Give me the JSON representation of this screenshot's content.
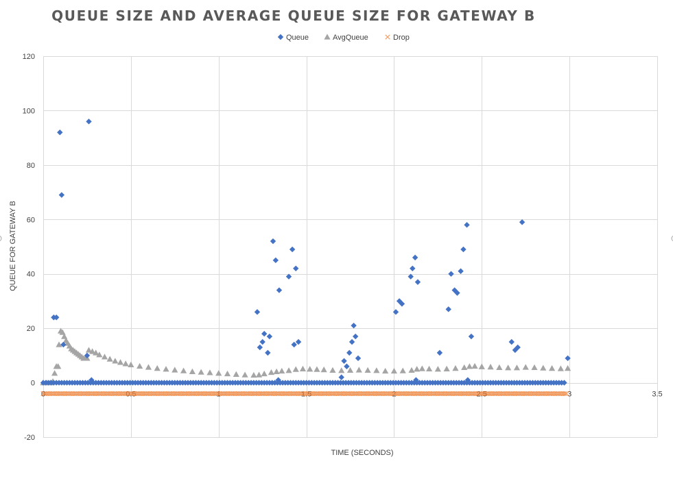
{
  "chart_data": {
    "type": "scatter",
    "title": "QUEUE SIZE AND AVERAGE QUEUE SIZE FOR GATEWAY B",
    "xlabel": "TIME (SECONDS)",
    "ylabel": "QUEUE FOR GATEWAY B",
    "xlim": [
      0,
      3.5
    ],
    "ylim": [
      -20,
      120
    ],
    "x_ticks": [
      0,
      0.5,
      1,
      1.5,
      2,
      2.5,
      3,
      3.5
    ],
    "x_tick_labels": [
      "0",
      "0.5",
      "1",
      "1.5",
      "2",
      "2.5",
      "3",
      "3.5"
    ],
    "y_ticks": [
      -20,
      0,
      20,
      40,
      60,
      80,
      100,
      120
    ],
    "y_tick_labels": [
      "-20",
      "0",
      "20",
      "40",
      "60",
      "80",
      "100",
      "120"
    ],
    "grid": true,
    "legend_position": "top",
    "series": [
      {
        "name": "Queue",
        "marker": "diamond",
        "color": "#4472c4",
        "baseline": {
          "x_start": 0.0,
          "x_end": 2.98,
          "step": 0.015,
          "y": 0
        },
        "points": [
          [
            0.06,
            24
          ],
          [
            0.075,
            24
          ],
          [
            0.095,
            92
          ],
          [
            0.105,
            69
          ],
          [
            0.115,
            14
          ],
          [
            0.25,
            10
          ],
          [
            0.26,
            96
          ],
          [
            0.275,
            1
          ],
          [
            1.22,
            26
          ],
          [
            1.235,
            13
          ],
          [
            1.25,
            15
          ],
          [
            1.26,
            18
          ],
          [
            1.28,
            11
          ],
          [
            1.29,
            17
          ],
          [
            1.31,
            52
          ],
          [
            1.325,
            45
          ],
          [
            1.345,
            34
          ],
          [
            1.34,
            1
          ],
          [
            1.4,
            39
          ],
          [
            1.42,
            49
          ],
          [
            1.43,
            14
          ],
          [
            1.44,
            42
          ],
          [
            1.455,
            15
          ],
          [
            1.7,
            2
          ],
          [
            1.715,
            8
          ],
          [
            1.73,
            6
          ],
          [
            1.745,
            11
          ],
          [
            1.76,
            15
          ],
          [
            1.77,
            21
          ],
          [
            1.78,
            17
          ],
          [
            1.795,
            9
          ],
          [
            2.01,
            26
          ],
          [
            2.03,
            30
          ],
          [
            2.045,
            29
          ],
          [
            2.095,
            39
          ],
          [
            2.105,
            42
          ],
          [
            2.12,
            46
          ],
          [
            2.125,
            1
          ],
          [
            2.135,
            37
          ],
          [
            2.26,
            11
          ],
          [
            2.31,
            27
          ],
          [
            2.325,
            40
          ],
          [
            2.345,
            34
          ],
          [
            2.36,
            33
          ],
          [
            2.38,
            41
          ],
          [
            2.395,
            49
          ],
          [
            2.415,
            58
          ],
          [
            2.42,
            1
          ],
          [
            2.44,
            17
          ],
          [
            2.67,
            15
          ],
          [
            2.69,
            12
          ],
          [
            2.705,
            13
          ],
          [
            2.73,
            59
          ],
          [
            2.99,
            9
          ]
        ]
      },
      {
        "name": "AvgQueue",
        "marker": "triangle",
        "color": "#a5a5a5",
        "points": [
          [
            0.0,
            0
          ],
          [
            0.02,
            0
          ],
          [
            0.04,
            0
          ],
          [
            0.055,
            0.5
          ],
          [
            0.065,
            3.5
          ],
          [
            0.075,
            6
          ],
          [
            0.085,
            6
          ],
          [
            0.09,
            14
          ],
          [
            0.1,
            19
          ],
          [
            0.11,
            18.5
          ],
          [
            0.12,
            17
          ],
          [
            0.13,
            15.5
          ],
          [
            0.14,
            14.5
          ],
          [
            0.15,
            13.5
          ],
          [
            0.16,
            12.5
          ],
          [
            0.17,
            12
          ],
          [
            0.18,
            11.5
          ],
          [
            0.19,
            11
          ],
          [
            0.2,
            10.5
          ],
          [
            0.21,
            10
          ],
          [
            0.22,
            9.5
          ],
          [
            0.23,
            9
          ],
          [
            0.24,
            9
          ],
          [
            0.25,
            9
          ],
          [
            0.26,
            12
          ],
          [
            0.28,
            11.5
          ],
          [
            0.3,
            11
          ],
          [
            0.32,
            10.3
          ],
          [
            0.35,
            9.5
          ],
          [
            0.38,
            8.7
          ],
          [
            0.41,
            8
          ],
          [
            0.44,
            7.5
          ],
          [
            0.47,
            7
          ],
          [
            0.5,
            6.6
          ],
          [
            0.55,
            6.1
          ],
          [
            0.6,
            5.7
          ],
          [
            0.65,
            5.3
          ],
          [
            0.7,
            5
          ],
          [
            0.75,
            4.7
          ],
          [
            0.8,
            4.4
          ],
          [
            0.85,
            4.1
          ],
          [
            0.9,
            3.9
          ],
          [
            0.95,
            3.7
          ],
          [
            1.0,
            3.5
          ],
          [
            1.05,
            3.3
          ],
          [
            1.1,
            3.1
          ],
          [
            1.15,
            2.9
          ],
          [
            1.2,
            2.8
          ],
          [
            1.23,
            2.9
          ],
          [
            1.26,
            3.3
          ],
          [
            1.3,
            3.8
          ],
          [
            1.33,
            4.1
          ],
          [
            1.36,
            4.3
          ],
          [
            1.4,
            4.5
          ],
          [
            1.44,
            4.9
          ],
          [
            1.48,
            5.1
          ],
          [
            1.52,
            5
          ],
          [
            1.56,
            4.9
          ],
          [
            1.6,
            4.8
          ],
          [
            1.65,
            4.6
          ],
          [
            1.7,
            4.5
          ],
          [
            1.75,
            4.6
          ],
          [
            1.8,
            4.7
          ],
          [
            1.85,
            4.6
          ],
          [
            1.9,
            4.5
          ],
          [
            1.95,
            4.3
          ],
          [
            2.0,
            4.3
          ],
          [
            2.05,
            4.4
          ],
          [
            2.1,
            4.6
          ],
          [
            2.13,
            5
          ],
          [
            2.16,
            5.2
          ],
          [
            2.2,
            5.1
          ],
          [
            2.25,
            5
          ],
          [
            2.3,
            5.1
          ],
          [
            2.35,
            5.3
          ],
          [
            2.4,
            5.6
          ],
          [
            2.43,
            6
          ],
          [
            2.46,
            6.1
          ],
          [
            2.5,
            5.9
          ],
          [
            2.55,
            5.8
          ],
          [
            2.6,
            5.6
          ],
          [
            2.65,
            5.5
          ],
          [
            2.7,
            5.5
          ],
          [
            2.75,
            5.7
          ],
          [
            2.8,
            5.6
          ],
          [
            2.85,
            5.4
          ],
          [
            2.9,
            5.3
          ],
          [
            2.95,
            5.2
          ],
          [
            2.99,
            5.3
          ]
        ]
      },
      {
        "name": "Drop",
        "marker": "x",
        "color": "#ed7d31",
        "baseline": {
          "x_start": 0.0,
          "x_end": 2.99,
          "step": 0.0095,
          "y": -4
        }
      }
    ]
  }
}
